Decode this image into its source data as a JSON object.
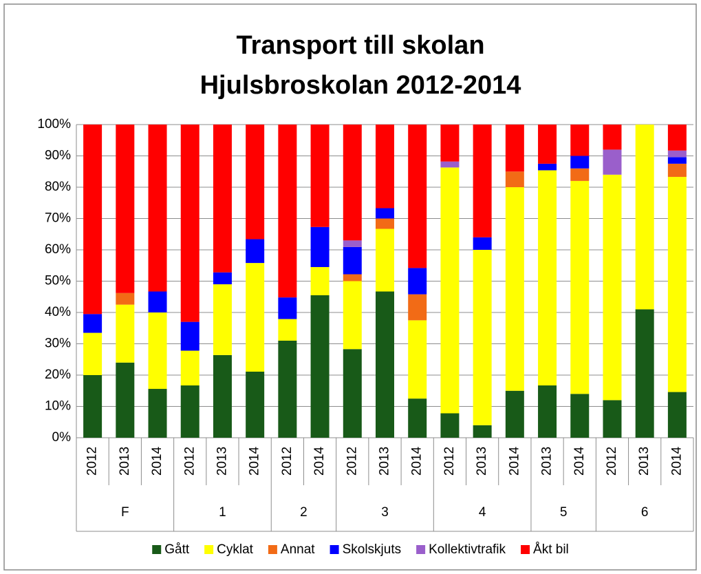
{
  "chart_data": {
    "type": "stacked_bar",
    "title": [
      "Transport till skolan",
      "Hjulsbroskolan 2012-2014"
    ],
    "categories": [
      "2012",
      "2013",
      "2014",
      "2012",
      "2013",
      "2014",
      "2012",
      "2014",
      "2012",
      "2013",
      "2014",
      "2012",
      "2013",
      "2014",
      "2013",
      "2014",
      "2012",
      "2013",
      "2014"
    ],
    "category_groups": [
      "F",
      "F",
      "F",
      "1",
      "1",
      "1",
      "2",
      "2",
      "3",
      "3",
      "3",
      "4",
      "4",
      "4",
      "5",
      "5",
      "6",
      "6",
      "6"
    ],
    "series": [
      {
        "name": "Gått",
        "color": "#185a18",
        "values": [
          20,
          24,
          15.6,
          16.7,
          26.4,
          21.1,
          31,
          45.5,
          28.3,
          46.7,
          12.5,
          7.8,
          4,
          15,
          16.7,
          14,
          12,
          41,
          14.6
        ]
      },
      {
        "name": "Cyklat",
        "color": "#ffff00",
        "values": [
          13.5,
          18.5,
          24.4,
          11.1,
          22.6,
          34.7,
          6.9,
          9,
          21.7,
          20,
          25,
          78.5,
          56,
          65,
          68.7,
          68,
          72,
          59,
          68.7
        ]
      },
      {
        "name": "Annat",
        "color": "#f26b16",
        "values": [
          0,
          3.7,
          0,
          0,
          0,
          0,
          0,
          0,
          2.2,
          3.3,
          8.3,
          0,
          0,
          5,
          0,
          4,
          0,
          0,
          4.2
        ]
      },
      {
        "name": "Skolskjuts",
        "color": "#0000ff",
        "values": [
          6,
          0,
          6.7,
          9.2,
          3.8,
          7.6,
          6.9,
          12.8,
          8.7,
          3.3,
          8.4,
          0,
          4,
          0,
          2.1,
          4,
          0,
          0,
          2.1
        ]
      },
      {
        "name": "Kollektivtrafik",
        "color": "#9a5fcb",
        "values": [
          0,
          0,
          0,
          0,
          0,
          0,
          0,
          0,
          2.1,
          0,
          0,
          1.9,
          0,
          0,
          0,
          0,
          8,
          0,
          2.1
        ]
      },
      {
        "name": "Åkt bil",
        "color": "#ff0000",
        "values": [
          60.5,
          53.8,
          53.3,
          63,
          47.2,
          36.6,
          55.2,
          32.7,
          37,
          26.7,
          45.8,
          11.8,
          36,
          15,
          12.5,
          10,
          8,
          0,
          8.3
        ]
      }
    ],
    "ylim": [
      0,
      100
    ],
    "yticks": [
      {
        "value": 0,
        "label": "0%"
      },
      {
        "value": 10,
        "label": "10%"
      },
      {
        "value": 20,
        "label": "20%"
      },
      {
        "value": 30,
        "label": "30%"
      },
      {
        "value": 40,
        "label": "40%"
      },
      {
        "value": 50,
        "label": "50%"
      },
      {
        "value": 60,
        "label": "60%"
      },
      {
        "value": 70,
        "label": "70%"
      },
      {
        "value": 80,
        "label": "80%"
      },
      {
        "value": 90,
        "label": "90%"
      },
      {
        "value": 100,
        "label": "100%"
      }
    ],
    "grid": true,
    "legend": "bottom"
  }
}
